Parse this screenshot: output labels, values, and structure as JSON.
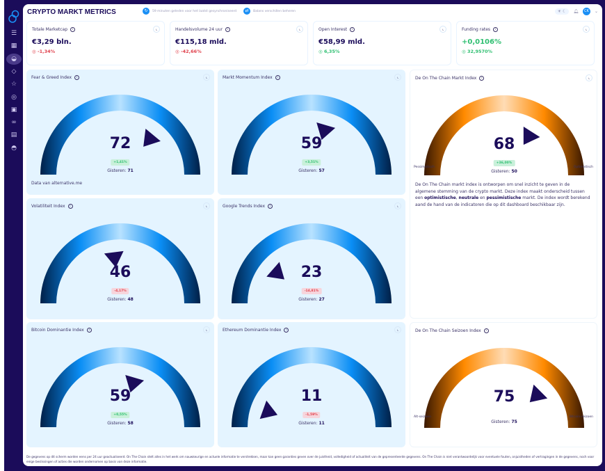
{
  "header": {
    "title": "CRYPTO MARKT METRICS",
    "sync_text": "59 minuten geleden voor het laatst gesynchroniseerd",
    "balance_text": "Balans verschillen beheren",
    "avatar": "CK"
  },
  "sidebar": {
    "items": [
      "menu-icon",
      "grid-icon",
      "dashboard-icon",
      "tag-icon",
      "star-icon",
      "coins-icon",
      "book-icon",
      "link-icon",
      "document-icon",
      "gauge-icon"
    ],
    "active": 2
  },
  "stats": [
    {
      "title": "Totale Marketcap",
      "value": "€3,29 bln.",
      "change": "-1,34%",
      "trend": "neg"
    },
    {
      "title": "Handelsvolume 24 uur",
      "value": "€115,18 mld.",
      "change": "-42,66%",
      "trend": "neg"
    },
    {
      "title": "Open Interest",
      "value": "€58,99 mld.",
      "change": "6,35%",
      "trend": "pos"
    },
    {
      "title": "Funding rates",
      "value": "+0,0106%",
      "change": "32,9570%",
      "trend": "pos"
    }
  ],
  "gauges": [
    {
      "title": "Fear & Greed Index",
      "value": 72,
      "badge": "+1,41%",
      "trend": "pos",
      "yesterday_label": "Gisteren:",
      "yesterday": "71",
      "theme": "blue",
      "footnote": "Data van alternative.me"
    },
    {
      "title": "Markt Momentum Index",
      "value": 59,
      "badge": "+3,51%",
      "trend": "pos",
      "yesterday_label": "Gisteren:",
      "yesterday": "57",
      "theme": "blue"
    },
    {
      "title": "De On The Chain Markt Index",
      "value": 68,
      "badge": "+36,00%",
      "trend": "pos",
      "yesterday_label": "Gisteren:",
      "yesterday": "50",
      "theme": "orange",
      "left_label": "Pessimistisch",
      "right_label": "Optimistisch"
    },
    {
      "title": "Volatiliteit Index",
      "value": 46,
      "badge": "-4,17%",
      "trend": "neg",
      "yesterday_label": "Gisteren:",
      "yesterday": "48",
      "theme": "blue"
    },
    {
      "title": "Google Trends Index",
      "value": 23,
      "badge": "-14,81%",
      "trend": "neg",
      "yesterday_label": "Gisteren:",
      "yesterday": "27",
      "theme": "blue"
    },
    {
      "title": "Bitcoin Dominantie Index",
      "value": 59,
      "badge": "+0,55%",
      "trend": "pos",
      "yesterday_label": "Gisteren:",
      "yesterday": "58",
      "theme": "blue"
    },
    {
      "title": "Ethereum Dominantie Index",
      "value": 11,
      "badge": "-1,59%",
      "trend": "neg",
      "yesterday_label": "Gisteren:",
      "yesterday": "11",
      "theme": "blue"
    },
    {
      "title": "De On The Chain Seizoen Index",
      "value": 75,
      "yesterday_label": "Gisteren:",
      "yesterday": "75",
      "theme": "orange",
      "left_label": "Alt-seizoen",
      "right_label": "Bitcoin-seizoen"
    }
  ],
  "description": {
    "p1": "De On The Chain markt index is ontworpen om snel inzicht te geven in de algemene stemming van de crypto markt. Deze index maakt onderscheid tussen een ",
    "b1": "optimistische",
    "p2": ", ",
    "b2": "neutrale",
    "p3": " en ",
    "b3": "pessimistische",
    "p4": " markt. De index wordt berekend aand de hand van de indicatoren die op dit dashboard beschikbaar zijn."
  },
  "disclaimer": "De gegevens op dit scherm worden eens per 24 uur geactualiseerd. On The Chain stelt alles in het werk om nauwkeurige en actuele informatie te verstrekken, maar kan geen garanties geven over de juistheid, volledigheid of actualiteit van de gepresenteerde gegevens. On The Chain is niet verantwoordelijk voor eventuele fouten, onjuistheden of vertragingen in de gegevens, noch voor enige beslissingen of acties die worden ondernomen op basis van deze informatie.",
  "colors": {
    "sidebar": "#1b0c5a",
    "accent": "#1a8ff5",
    "positive": "#2fbf71",
    "negative": "#e0434e",
    "card_bg": "#e4f4ff"
  }
}
